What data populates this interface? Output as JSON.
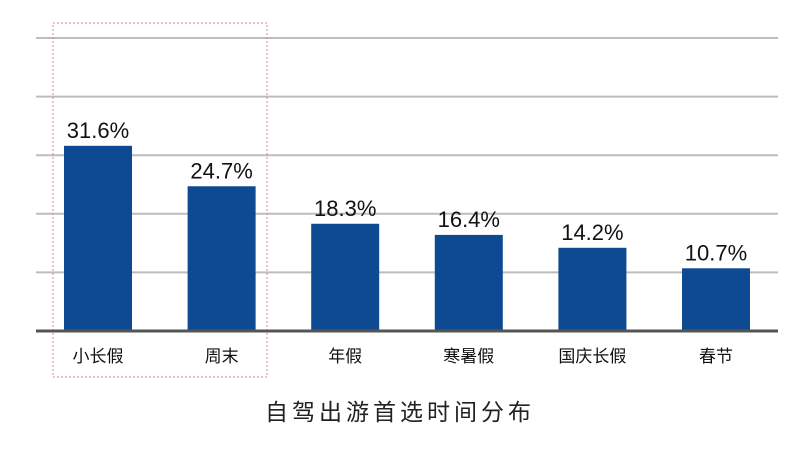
{
  "chart_data": {
    "type": "bar",
    "title": "自驾出游首选时间分布",
    "categories": [
      "小长假",
      "周末",
      "年假",
      "寒暑假",
      "国庆长假",
      "春节"
    ],
    "values": [
      31.6,
      24.7,
      18.3,
      16.4,
      14.2,
      10.7
    ],
    "value_labels": [
      "31.6%",
      "24.7%",
      "18.3%",
      "16.4%",
      "14.2%",
      "10.7%"
    ],
    "ylim": [
      0,
      50
    ],
    "grid": true,
    "highlight_categories": [
      "小长假",
      "周末"
    ],
    "colors": {
      "bar": "#0d4a92",
      "grid": "#bdbdbd",
      "axis": "#555555",
      "highlight_border": "#d9828a"
    }
  }
}
